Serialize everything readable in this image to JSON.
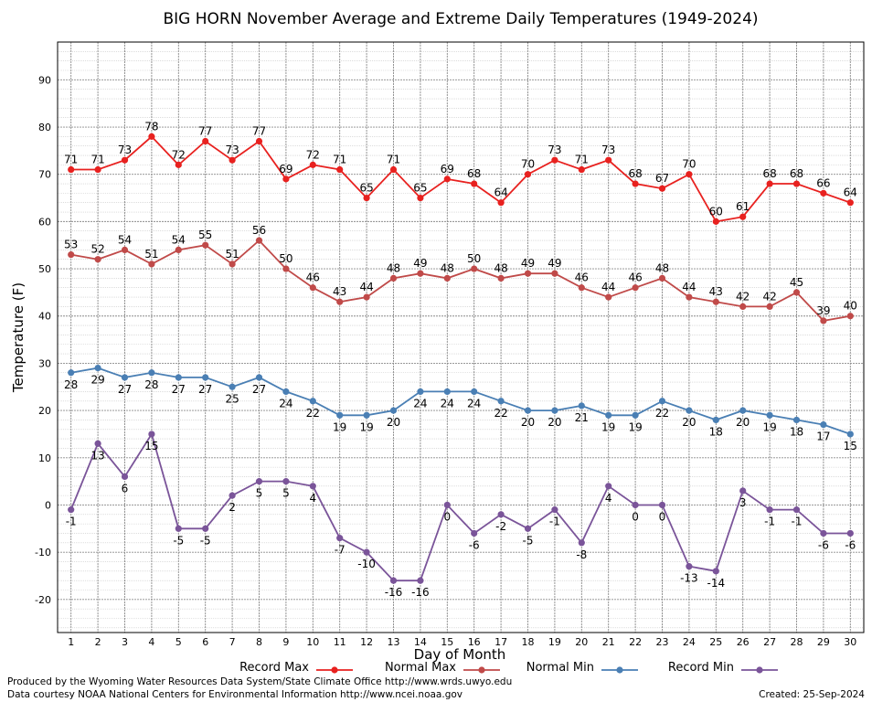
{
  "chart_data": {
    "type": "line",
    "title": "BIG HORN November Average and Extreme Daily Temperatures (1949-2024)",
    "xlabel": "Day of Month",
    "ylabel": "Temperature (F)",
    "x": [
      1,
      2,
      3,
      4,
      5,
      6,
      7,
      8,
      9,
      10,
      11,
      12,
      13,
      14,
      15,
      16,
      17,
      18,
      19,
      20,
      21,
      22,
      23,
      24,
      25,
      26,
      27,
      28,
      29,
      30
    ],
    "xlim": [
      0.5,
      30.5
    ],
    "ylim": [
      -27,
      98
    ],
    "yticks": [
      -20,
      -10,
      0,
      10,
      20,
      30,
      40,
      50,
      60,
      70,
      80,
      90
    ],
    "grid": true,
    "legend_position": "bottom",
    "series": [
      {
        "name": "Record Max",
        "color": "#e8211f",
        "label_pos": "above",
        "values": [
          71,
          71,
          73,
          78,
          72,
          77,
          73,
          77,
          69,
          72,
          71,
          65,
          71,
          65,
          69,
          68,
          64,
          70,
          73,
          71,
          73,
          68,
          67,
          70,
          60,
          61,
          68,
          68,
          66,
          64
        ]
      },
      {
        "name": "Normal Max",
        "color": "#c04a49",
        "label_pos": "above",
        "values": [
          53,
          52,
          54,
          51,
          54,
          55,
          51,
          56,
          50,
          46,
          43,
          44,
          48,
          49,
          48,
          50,
          48,
          49,
          49,
          46,
          44,
          46,
          48,
          44,
          43,
          42,
          42,
          45,
          39,
          40
        ]
      },
      {
        "name": "Normal Min",
        "color": "#4a7fb4",
        "label_pos": "below",
        "values": [
          28,
          29,
          27,
          28,
          27,
          27,
          25,
          27,
          24,
          22,
          19,
          19,
          20,
          24,
          24,
          24,
          22,
          20,
          20,
          21,
          19,
          19,
          22,
          20,
          18,
          20,
          19,
          18,
          17,
          15
        ]
      },
      {
        "name": "Record Min",
        "color": "#7a5499",
        "label_pos": "below",
        "values": [
          -1,
          13,
          6,
          15,
          -5,
          -5,
          2,
          5,
          5,
          4,
          -7,
          -10,
          -16,
          -16,
          0,
          -6,
          -2,
          -5,
          -1,
          -8,
          4,
          0,
          0,
          -13,
          -14,
          3,
          -1,
          -1,
          -6,
          -6
        ]
      }
    ]
  },
  "footer": {
    "produced_by": "Produced by the Wyoming Water Resources Data System/State Climate Office http://www.wrds.uwyo.edu",
    "data_courtesy": "Data courtesy NOAA National Centers for Environmental Information http://www.ncei.noaa.gov",
    "created": "Created:  25-Sep-2024"
  }
}
